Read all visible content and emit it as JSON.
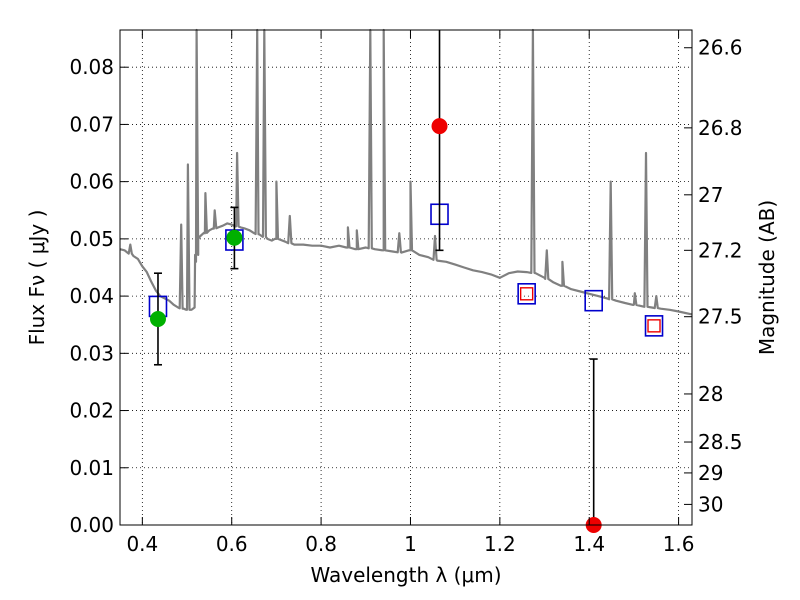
{
  "chart_data": {
    "type": "scatter",
    "xlabel": "Wavelength  λ (μm)",
    "ylabel": "Flux  Fν  ( μJy )",
    "y2label": "Magnitude (AB)",
    "xlim": [
      0.35,
      1.63
    ],
    "ylim": [
      0.0,
      0.0865
    ],
    "xticks": [
      0.4,
      0.6,
      0.8,
      1.0,
      1.2,
      1.4,
      1.6
    ],
    "xtick_labels": [
      "0.4",
      "0.6",
      "0.8",
      "1",
      "1.2",
      "1.4",
      "1.6"
    ],
    "yticks": [
      0.0,
      0.01,
      0.02,
      0.03,
      0.04,
      0.05,
      0.06,
      0.07,
      0.08
    ],
    "ytick_labels": [
      "0.00",
      "0.01",
      "0.02",
      "0.03",
      "0.04",
      "0.05",
      "0.06",
      "0.07",
      "0.08"
    ],
    "y2ticks": [
      {
        "label": "26.6",
        "flux": 0.0834
      },
      {
        "label": "26.8",
        "flux": 0.0694
      },
      {
        "label": "27",
        "flux": 0.0577
      },
      {
        "label": "27.2",
        "flux": 0.048
      },
      {
        "label": "27.5",
        "flux": 0.0364
      },
      {
        "label": "28",
        "flux": 0.0229
      },
      {
        "label": "28.5",
        "flux": 0.0145
      },
      {
        "label": "29",
        "flux": 0.0091
      },
      {
        "label": "30",
        "flux": 0.0036
      }
    ],
    "grid": true,
    "grid_style": "dotted",
    "observed_points": [
      {
        "x": 0.435,
        "y": 0.036,
        "yerr_low": 0.028,
        "yerr_high": 0.044,
        "color": "#00b000"
      },
      {
        "x": 0.606,
        "y": 0.0502,
        "yerr_low": 0.0448,
        "yerr_high": 0.0555,
        "color": "#00b000"
      },
      {
        "x": 1.065,
        "y": 0.0697,
        "yerr_low": 0.048,
        "yerr_high": 0.0865,
        "color": "#ee0000"
      },
      {
        "x": 1.41,
        "y": 0.0,
        "yerr_low": 0.0,
        "yerr_high": 0.029,
        "color": "#ee0000"
      }
    ],
    "model_bands": [
      {
        "x": 0.435,
        "y": 0.0382
      },
      {
        "x": 0.606,
        "y": 0.0498
      },
      {
        "x": 1.065,
        "y": 0.0543
      },
      {
        "x": 1.26,
        "y": 0.0404
      },
      {
        "x": 1.41,
        "y": 0.0392
      },
      {
        "x": 1.545,
        "y": 0.0348
      }
    ],
    "model_bands_inner": [
      {
        "x": 1.26,
        "y": 0.0404
      },
      {
        "x": 1.545,
        "y": 0.0348
      }
    ],
    "spectrum": [
      [
        0.35,
        0.0482
      ],
      [
        0.36,
        0.048
      ],
      [
        0.37,
        0.0476
      ],
      [
        0.38,
        0.047
      ],
      [
        0.39,
        0.0465
      ],
      [
        0.4,
        0.0452
      ],
      [
        0.41,
        0.0442
      ],
      [
        0.42,
        0.0425
      ],
      [
        0.43,
        0.041
      ],
      [
        0.44,
        0.04
      ],
      [
        0.45,
        0.0396
      ],
      [
        0.46,
        0.0392
      ],
      [
        0.47,
        0.0385
      ],
      [
        0.48,
        0.038
      ],
      [
        0.49,
        0.0378
      ],
      [
        0.5,
        0.0376
      ],
      [
        0.51,
        0.0376
      ],
      [
        0.517,
        0.038
      ],
      [
        0.52,
        0.046
      ],
      [
        0.525,
        0.05
      ],
      [
        0.53,
        0.0505
      ],
      [
        0.54,
        0.051
      ],
      [
        0.55,
        0.0515
      ],
      [
        0.56,
        0.0518
      ],
      [
        0.57,
        0.052
      ],
      [
        0.58,
        0.0523
      ],
      [
        0.59,
        0.0527
      ],
      [
        0.6,
        0.0525
      ],
      [
        0.61,
        0.0522
      ],
      [
        0.62,
        0.052
      ],
      [
        0.63,
        0.0518
      ],
      [
        0.64,
        0.0515
      ],
      [
        0.65,
        0.051
      ],
      [
        0.66,
        0.0508
      ],
      [
        0.67,
        0.0505
      ],
      [
        0.68,
        0.05
      ],
      [
        0.69,
        0.0497
      ],
      [
        0.7,
        0.05
      ],
      [
        0.72,
        0.0495
      ],
      [
        0.74,
        0.049
      ],
      [
        0.76,
        0.049
      ],
      [
        0.78,
        0.0488
      ],
      [
        0.8,
        0.0488
      ],
      [
        0.82,
        0.0485
      ],
      [
        0.84,
        0.0488
      ],
      [
        0.86,
        0.0485
      ],
      [
        0.88,
        0.0482
      ],
      [
        0.9,
        0.0485
      ],
      [
        0.92,
        0.0482
      ],
      [
        0.94,
        0.048
      ],
      [
        0.96,
        0.0478
      ],
      [
        0.98,
        0.0476
      ],
      [
        1.0,
        0.048
      ],
      [
        1.02,
        0.0472
      ],
      [
        1.04,
        0.0468
      ],
      [
        1.06,
        0.0462
      ],
      [
        1.08,
        0.046
      ],
      [
        1.1,
        0.0455
      ],
      [
        1.12,
        0.045
      ],
      [
        1.14,
        0.0445
      ],
      [
        1.16,
        0.0442
      ],
      [
        1.18,
        0.0438
      ],
      [
        1.2,
        0.0432
      ],
      [
        1.22,
        0.044
      ],
      [
        1.24,
        0.0443
      ],
      [
        1.26,
        0.0442
      ],
      [
        1.28,
        0.044
      ],
      [
        1.3,
        0.0432
      ],
      [
        1.32,
        0.0424
      ],
      [
        1.34,
        0.0418
      ],
      [
        1.36,
        0.0412
      ],
      [
        1.38,
        0.0408
      ],
      [
        1.4,
        0.0404
      ],
      [
        1.42,
        0.04
      ],
      [
        1.44,
        0.0396
      ],
      [
        1.46,
        0.0392
      ],
      [
        1.48,
        0.0388
      ],
      [
        1.5,
        0.0385
      ],
      [
        1.52,
        0.0382
      ],
      [
        1.54,
        0.038
      ],
      [
        1.56,
        0.0378
      ],
      [
        1.58,
        0.0376
      ],
      [
        1.6,
        0.0373
      ],
      [
        1.63,
        0.0368
      ]
    ],
    "emission_lines": [
      {
        "x": 0.373,
        "peak": 0.049
      },
      {
        "x": 0.487,
        "peak": 0.0525
      },
      {
        "x": 0.502,
        "peak": 0.063
      },
      {
        "x": 0.5215,
        "peak": 0.0865
      },
      {
        "x": 0.541,
        "peak": 0.058
      },
      {
        "x": 0.562,
        "peak": 0.055
      },
      {
        "x": 0.612,
        "peak": 0.065
      },
      {
        "x": 0.657,
        "peak": 0.0865
      },
      {
        "x": 0.673,
        "peak": 0.0865
      },
      {
        "x": 0.7,
        "peak": 0.06
      },
      {
        "x": 0.73,
        "peak": 0.054
      },
      {
        "x": 0.86,
        "peak": 0.052
      },
      {
        "x": 0.88,
        "peak": 0.0515
      },
      {
        "x": 0.91,
        "peak": 0.0865
      },
      {
        "x": 0.94,
        "peak": 0.0865
      },
      {
        "x": 0.975,
        "peak": 0.051
      },
      {
        "x": 1.0,
        "peak": 0.06
      },
      {
        "x": 1.055,
        "peak": 0.0505
      },
      {
        "x": 1.274,
        "peak": 0.0865
      },
      {
        "x": 1.305,
        "peak": 0.048
      },
      {
        "x": 1.34,
        "peak": 0.046
      },
      {
        "x": 1.448,
        "peak": 0.06
      },
      {
        "x": 1.502,
        "peak": 0.0405
      },
      {
        "x": 1.527,
        "peak": 0.065
      },
      {
        "x": 1.55,
        "peak": 0.04
      }
    ],
    "colors": {
      "spectrum": "#808080",
      "model_band_outer": "#0000cc",
      "model_band_inner": "#ee0000",
      "errorbar": "#000000"
    }
  }
}
